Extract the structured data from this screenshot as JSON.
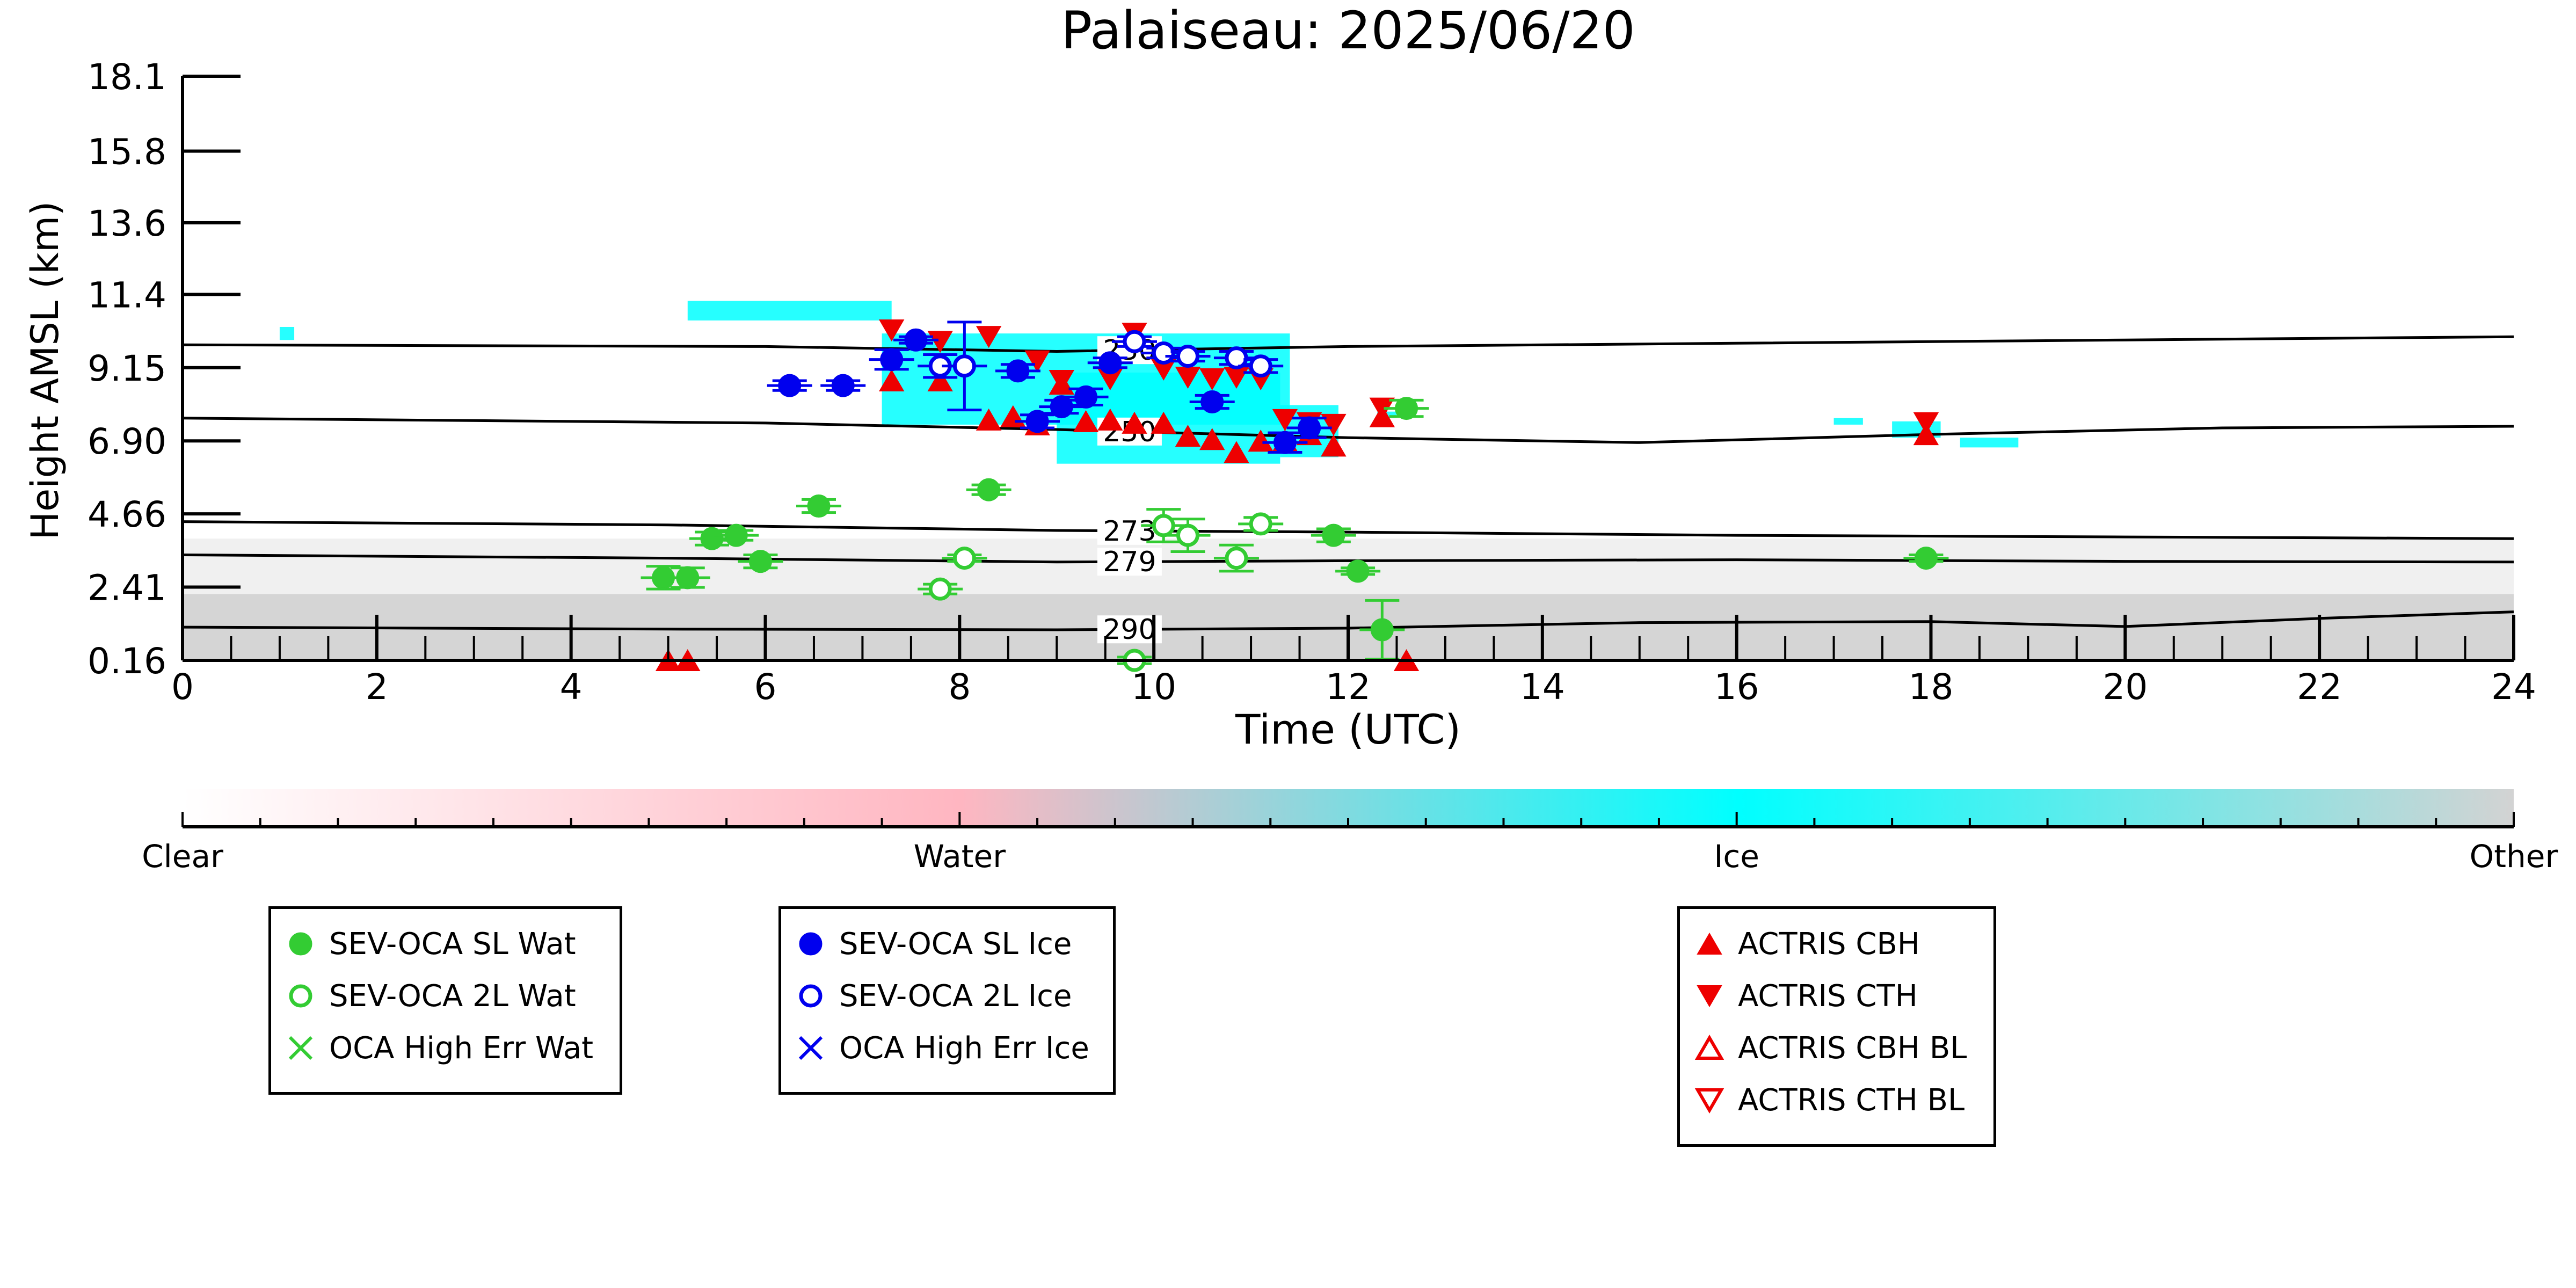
{
  "chart_data": {
    "type": "scatter",
    "title": "Palaiseau: 2025/06/20",
    "xlabel": "Time (UTC)",
    "ylabel": "Height AMSL (km)",
    "xlim": [
      0,
      24
    ],
    "ylim": [
      0.16,
      18.1
    ],
    "x_ticks": [
      "0",
      "2",
      "4",
      "6",
      "8",
      "10",
      "12",
      "14",
      "16",
      "18",
      "20",
      "22",
      "24"
    ],
    "y_ticks": [
      "0.16",
      "2.41",
      "4.66",
      "6.90",
      "9.15",
      "11.4",
      "13.6",
      "15.8",
      "18.1"
    ],
    "y_tick_values": [
      0.16,
      2.41,
      4.66,
      6.9,
      9.15,
      11.4,
      13.6,
      15.8,
      18.1
    ],
    "colorbar": {
      "labels": [
        "Clear",
        "Water",
        "Ice",
        "Other"
      ],
      "colors": [
        "#ffffff",
        "#ffb6c1",
        "#00ffff",
        "#d3d3d3"
      ]
    },
    "contours": [
      {
        "label": "230",
        "label_x": 9.75,
        "points": [
          [
            0,
            9.85
          ],
          [
            6,
            9.8
          ],
          [
            9,
            9.65
          ],
          [
            12,
            9.8
          ],
          [
            16,
            9.9
          ],
          [
            20,
            10.0
          ],
          [
            24,
            10.1
          ]
        ]
      },
      {
        "label": "250",
        "label_x": 9.75,
        "points": [
          [
            0,
            7.6
          ],
          [
            6,
            7.45
          ],
          [
            9,
            7.25
          ],
          [
            12,
            7.0
          ],
          [
            15,
            6.85
          ],
          [
            18,
            7.1
          ],
          [
            21,
            7.3
          ],
          [
            24,
            7.35
          ]
        ]
      },
      {
        "label": "273",
        "label_x": 9.75,
        "points": [
          [
            0,
            4.42
          ],
          [
            5,
            4.32
          ],
          [
            9,
            4.15
          ],
          [
            12,
            4.1
          ],
          [
            16,
            4.0
          ],
          [
            20,
            3.95
          ],
          [
            24,
            3.9
          ]
        ]
      },
      {
        "label": "279",
        "label_x": 9.75,
        "points": [
          [
            0,
            3.4
          ],
          [
            5,
            3.3
          ],
          [
            9,
            3.18
          ],
          [
            12,
            3.22
          ],
          [
            16,
            3.25
          ],
          [
            20,
            3.2
          ],
          [
            24,
            3.18
          ]
        ]
      },
      {
        "label": "290",
        "label_x": 9.75,
        "points": [
          [
            0,
            1.18
          ],
          [
            5,
            1.12
          ],
          [
            9,
            1.1
          ],
          [
            12,
            1.15
          ],
          [
            15,
            1.32
          ],
          [
            18,
            1.35
          ],
          [
            20,
            1.2
          ],
          [
            22,
            1.45
          ],
          [
            24,
            1.65
          ]
        ]
      }
    ],
    "series": [
      {
        "name": "SEV-OCA SL Wat",
        "marker": "filled-circle",
        "color": "#33cc33",
        "points": [
          [
            4.95,
            2.7,
            0.35
          ],
          [
            5.2,
            2.7,
            0.3
          ],
          [
            5.45,
            3.9,
            0.2
          ],
          [
            5.7,
            4.0,
            0.15
          ],
          [
            5.95,
            3.2,
            0.2
          ],
          [
            6.55,
            4.9,
            0.2
          ],
          [
            8.3,
            5.4,
            0.15
          ],
          [
            11.85,
            4.0,
            0.2
          ],
          [
            12.1,
            2.9,
            0.1
          ],
          [
            12.35,
            1.1,
            0.9
          ],
          [
            12.6,
            7.9,
            0.25
          ],
          [
            17.95,
            3.3,
            0.1
          ]
        ]
      },
      {
        "name": "SEV-OCA 2L Wat",
        "marker": "open-circle",
        "color": "#33cc33",
        "points": [
          [
            7.8,
            2.35,
            0.15
          ],
          [
            8.05,
            3.3,
            0.1
          ],
          [
            9.8,
            0.16,
            0.1
          ],
          [
            10.1,
            4.3,
            0.5
          ],
          [
            10.35,
            4.0,
            0.5
          ],
          [
            10.85,
            3.3,
            0.4
          ],
          [
            11.1,
            4.35,
            0.2
          ]
        ]
      },
      {
        "name": "SEV-OCA SL Ice",
        "marker": "filled-circle",
        "color": "#0000ee",
        "points": [
          [
            6.25,
            8.6,
            0.15
          ],
          [
            6.8,
            8.6,
            0.15
          ],
          [
            7.3,
            9.4,
            0.3
          ],
          [
            7.55,
            10.0,
            0.1
          ],
          [
            8.6,
            9.05,
            0.2
          ],
          [
            8.8,
            7.5,
            0.2
          ],
          [
            9.05,
            7.95,
            0.2
          ],
          [
            9.3,
            8.25,
            0.25
          ],
          [
            9.55,
            9.3,
            0.15
          ],
          [
            10.6,
            8.1,
            0.2
          ],
          [
            11.35,
            6.85,
            0.3
          ],
          [
            11.6,
            7.3,
            0.3
          ]
        ]
      },
      {
        "name": "SEV-OCA 2L Ice",
        "marker": "open-circle",
        "color": "#0000ee",
        "points": [
          [
            7.8,
            9.2,
            0.35
          ],
          [
            8.05,
            9.2,
            1.35
          ],
          [
            9.8,
            9.95,
            0.15
          ],
          [
            10.1,
            9.6,
            0.15
          ],
          [
            10.35,
            9.5,
            0.15
          ],
          [
            10.85,
            9.45,
            0.2
          ],
          [
            11.1,
            9.2,
            0.2
          ]
        ]
      },
      {
        "name": "OCA High Err Wat",
        "marker": "x",
        "color": "#33cc33",
        "points": []
      },
      {
        "name": "OCA High Err Ice",
        "marker": "x",
        "color": "#0000ee",
        "points": []
      },
      {
        "name": "ACTRIS CBH",
        "marker": "triangle-up",
        "color": "#ee0000",
        "points": [
          [
            7.3,
            8.75
          ],
          [
            7.8,
            8.75
          ],
          [
            8.3,
            7.55
          ],
          [
            8.55,
            7.65
          ],
          [
            8.8,
            7.4
          ],
          [
            9.05,
            8.65
          ],
          [
            9.3,
            7.5
          ],
          [
            9.55,
            7.55
          ],
          [
            9.8,
            7.45
          ],
          [
            10.1,
            7.45
          ],
          [
            10.35,
            7.05
          ],
          [
            10.6,
            6.95
          ],
          [
            10.85,
            6.55
          ],
          [
            11.1,
            6.9
          ],
          [
            11.35,
            6.9
          ],
          [
            11.6,
            7.1
          ],
          [
            11.85,
            6.75
          ],
          [
            12.35,
            7.65
          ],
          [
            12.6,
            0.16
          ],
          [
            17.95,
            7.1
          ],
          [
            5.0,
            0.16
          ],
          [
            5.2,
            0.16
          ]
        ]
      },
      {
        "name": "ACTRIS CTH",
        "marker": "triangle-down",
        "color": "#ee0000",
        "points": [
          [
            7.3,
            10.3
          ],
          [
            7.8,
            9.95
          ],
          [
            8.3,
            10.1
          ],
          [
            8.8,
            9.35
          ],
          [
            9.05,
            8.75
          ],
          [
            9.55,
            8.8
          ],
          [
            9.8,
            10.2
          ],
          [
            10.1,
            9.1
          ],
          [
            10.35,
            8.85
          ],
          [
            10.6,
            8.8
          ],
          [
            10.85,
            8.85
          ],
          [
            11.1,
            8.8
          ],
          [
            11.35,
            7.55
          ],
          [
            11.6,
            7.45
          ],
          [
            11.85,
            7.4
          ],
          [
            12.35,
            7.9
          ],
          [
            17.95,
            7.45
          ]
        ]
      },
      {
        "name": "ACTRIS CBH BL",
        "marker": "open-triangle-up",
        "color": "#ee0000",
        "points": []
      },
      {
        "name": "ACTRIS CTH BL",
        "marker": "open-triangle-down",
        "color": "#ee0000",
        "points": []
      }
    ],
    "cloud_regions": [
      {
        "class": "Ice",
        "areas": [
          [
            1.0,
            1.15,
            10.0,
            10.4
          ],
          [
            5.2,
            7.3,
            10.6,
            11.2
          ],
          [
            7.2,
            11.4,
            7.4,
            10.2
          ],
          [
            9.0,
            11.3,
            6.2,
            9.0
          ],
          [
            11.3,
            11.9,
            6.4,
            8.0
          ],
          [
            12.3,
            12.5,
            7.6,
            7.8
          ],
          [
            17.0,
            17.3,
            7.4,
            7.6
          ],
          [
            17.6,
            18.1,
            7.0,
            7.5
          ],
          [
            18.3,
            18.9,
            6.7,
            7.0
          ]
        ]
      },
      {
        "class": "Other",
        "areas": [
          [
            0,
            24,
            0.16,
            2.2
          ],
          [
            0,
            24,
            2.2,
            3.9
          ]
        ]
      }
    ],
    "grid": false,
    "legend": "bottom"
  },
  "legend": {
    "groups": [
      {
        "items": [
          {
            "label": "SEV-OCA SL Wat",
            "marker": "filled-circle",
            "color": "#33cc33"
          },
          {
            "label": "SEV-OCA 2L Wat",
            "marker": "open-circle",
            "color": "#33cc33"
          },
          {
            "label": "OCA High Err Wat",
            "marker": "x",
            "color": "#33cc33"
          }
        ]
      },
      {
        "items": [
          {
            "label": "SEV-OCA SL Ice",
            "marker": "filled-circle",
            "color": "#0000ee"
          },
          {
            "label": "SEV-OCA 2L Ice",
            "marker": "open-circle",
            "color": "#0000ee"
          },
          {
            "label": "OCA High Err Ice",
            "marker": "x",
            "color": "#0000ee"
          }
        ]
      },
      {
        "items": [
          {
            "label": "ACTRIS CBH",
            "marker": "triangle-up",
            "color": "#ee0000"
          },
          {
            "label": "ACTRIS CTH",
            "marker": "triangle-down",
            "color": "#ee0000"
          },
          {
            "label": "ACTRIS CBH BL",
            "marker": "open-triangle-up",
            "color": "#ee0000"
          },
          {
            "label": "ACTRIS CTH BL",
            "marker": "open-triangle-down",
            "color": "#ee0000"
          }
        ]
      }
    ]
  }
}
